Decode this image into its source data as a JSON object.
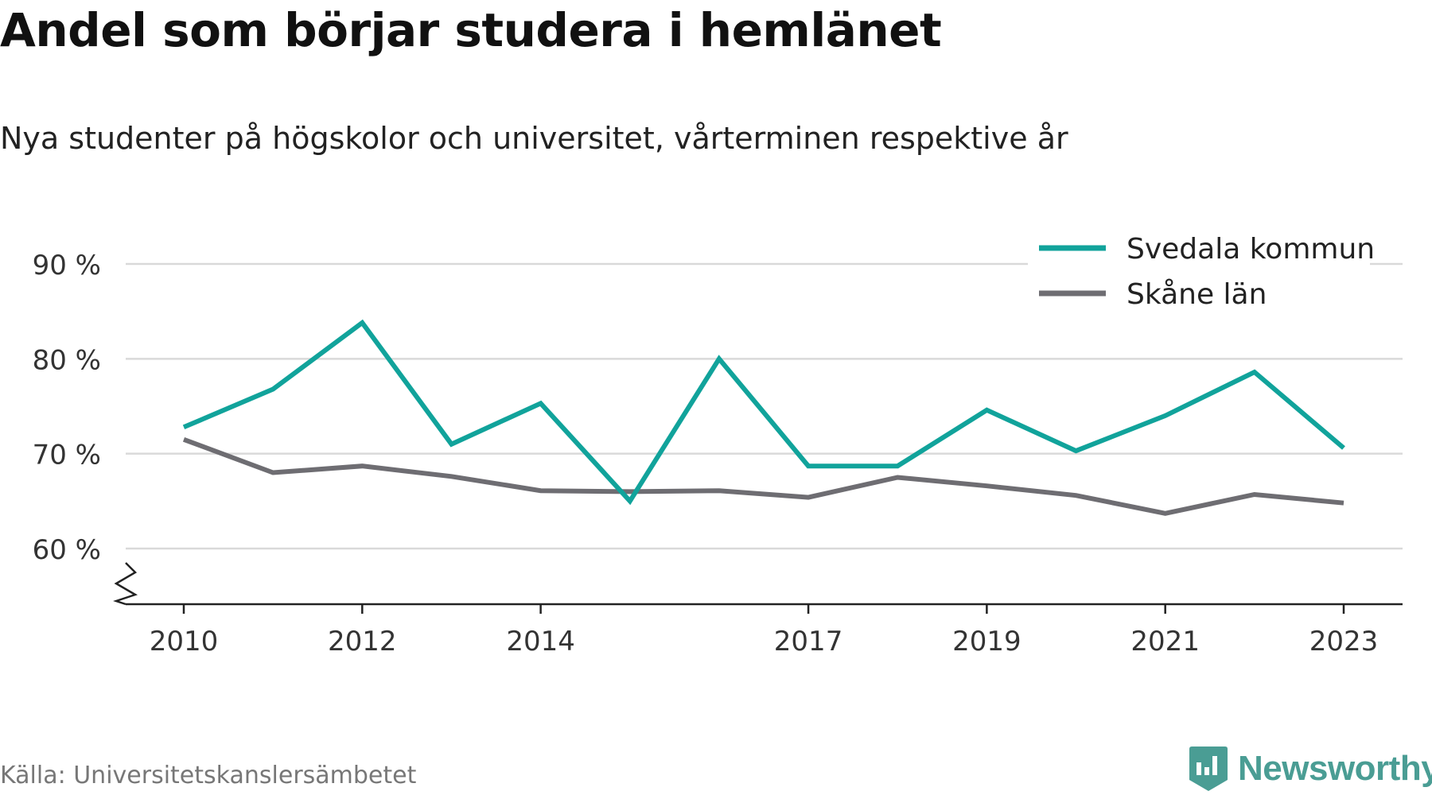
{
  "title": "Andel som börjar studera i hemlänet",
  "subtitle": "Nya studenter på högskolor och universitet, vårterminen respektive år",
  "source": "Källa: Universitetskanslersämbetet",
  "brand": {
    "name": "Newsworthy",
    "color": "#4a9d94",
    "icon": "bar-chart-badge-icon"
  },
  "colors": {
    "svedala": "#11a39b",
    "skane": "#6e6d72",
    "grid": "#d9d9d9",
    "axis": "#222222"
  },
  "chart_data": {
    "type": "line",
    "x": [
      2010,
      2011,
      2012,
      2013,
      2014,
      2015,
      2016,
      2017,
      2018,
      2019,
      2020,
      2021,
      2022,
      2023
    ],
    "x_tick_labels": [
      "2010",
      "2012",
      "2014",
      "2017",
      "2019",
      "2021",
      "2023"
    ],
    "y_tick_labels": [
      "60 %",
      "70 %",
      "80 %",
      "90 %"
    ],
    "y_ticks": [
      60,
      70,
      80,
      90
    ],
    "ylim": [
      55,
      90
    ],
    "y_axis_broken": true,
    "grid": true,
    "legend_position": "top-right",
    "series": [
      {
        "name": "Svedala kommun",
        "color": "#11a39b",
        "values": [
          72.8,
          76.8,
          83.8,
          71.0,
          75.3,
          65.0,
          80.0,
          68.7,
          68.7,
          74.6,
          70.3,
          74.0,
          78.6,
          70.6
        ]
      },
      {
        "name": "Skåne län",
        "color": "#6e6d72",
        "values": [
          71.5,
          68.0,
          68.7,
          67.6,
          66.1,
          66.0,
          66.1,
          65.4,
          67.5,
          66.6,
          65.6,
          63.7,
          65.7,
          64.8
        ]
      }
    ]
  }
}
